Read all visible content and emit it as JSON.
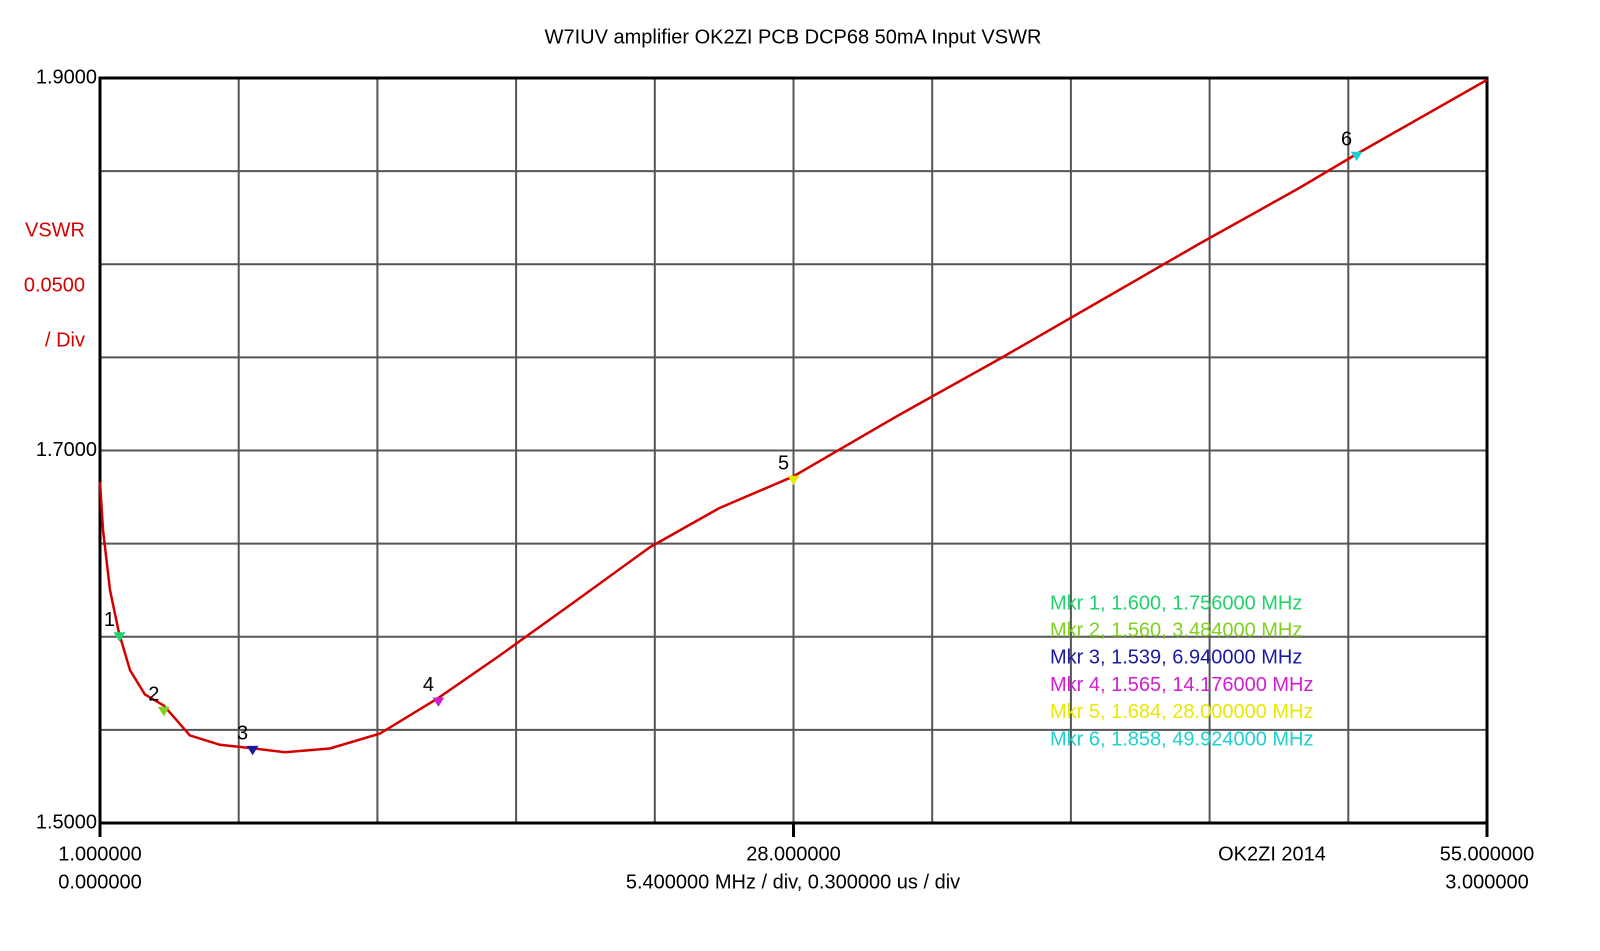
{
  "chart_data": {
    "type": "line",
    "title": "W7IUV amplifier OK2ZI PCB DCP68 50mA Input VSWR",
    "y_label_lines": [
      "VSWR",
      "0.0500",
      "/ Div"
    ],
    "scale_note": "5.400000 MHz / div, 0.300000 us / div",
    "credit": "OK2ZI 2014",
    "xlim": [
      1,
      55
    ],
    "ylim": [
      1.5,
      1.9
    ],
    "xticks": [
      {
        "value": 1,
        "label": "1.000000"
      },
      {
        "value": 28,
        "label": "28.000000"
      },
      {
        "value": 55,
        "label": "55.000000"
      }
    ],
    "x2lim": [
      0,
      3
    ],
    "x2ticks": [
      {
        "value": 0,
        "label": "0.000000"
      },
      {
        "value": 3,
        "label": "3.000000"
      }
    ],
    "yticks": [
      {
        "value": 1.5,
        "label": "1.5000"
      },
      {
        "value": 1.7,
        "label": "1.7000"
      },
      {
        "value": 1.9,
        "label": "1.9000"
      }
    ],
    "xgrid": [
      1,
      6.4,
      11.8,
      17.2,
      22.6,
      28,
      33.4,
      38.8,
      44.2,
      49.6,
      55
    ],
    "ygrid": [
      1.5,
      1.55,
      1.6,
      1.65,
      1.7,
      1.75,
      1.8,
      1.85,
      1.9
    ],
    "grid": true,
    "series": [
      {
        "color": "#d40000",
        "x": [
          1,
          1.12,
          1.39,
          1.74,
          2.17,
          2.75,
          3.49,
          4.5,
          5.67,
          7.0,
          8.2,
          9.95,
          11.9,
          14.16,
          16.57,
          19.7,
          22.4,
          25.1,
          27.98,
          32.1,
          36.0,
          39.9,
          43.8,
          47.7,
          49.9,
          55
        ],
        "values": [
          1.683,
          1.657,
          1.625,
          1.602,
          1.582,
          1.569,
          1.563,
          1.547,
          1.542,
          1.54,
          1.538,
          1.54,
          1.548,
          1.567,
          1.59,
          1.621,
          1.648,
          1.669,
          1.686,
          1.719,
          1.749,
          1.78,
          1.811,
          1.841,
          1.859,
          1.899
        ]
      }
    ],
    "markers": [
      {
        "label": "1",
        "x": 1.756,
        "y": 1.6,
        "color": "#1fd36a",
        "text": "Mkr 1, 1.600, 1.756000 MHz"
      },
      {
        "label": "2",
        "x": 3.484,
        "y": 1.56,
        "color": "#7fd11f",
        "text": "Mkr 2, 1.560, 3.484000 MHz"
      },
      {
        "label": "3",
        "x": 6.94,
        "y": 1.539,
        "color": "#1a1aa0",
        "text": "Mkr 3, 1.539, 6.940000 MHz"
      },
      {
        "label": "4",
        "x": 14.176,
        "y": 1.565,
        "color": "#d01fd0",
        "text": "Mkr 4, 1.565, 14.176000 MHz"
      },
      {
        "label": "5",
        "x": 28,
        "y": 1.684,
        "color": "#e8e800",
        "text": "Mkr 5, 1.684, 28.000000 MHz"
      },
      {
        "label": "6",
        "x": 49.924,
        "y": 1.858,
        "color": "#1fd0d0",
        "text": "Mkr 6, 1.858, 49.924000 MHz"
      }
    ]
  }
}
